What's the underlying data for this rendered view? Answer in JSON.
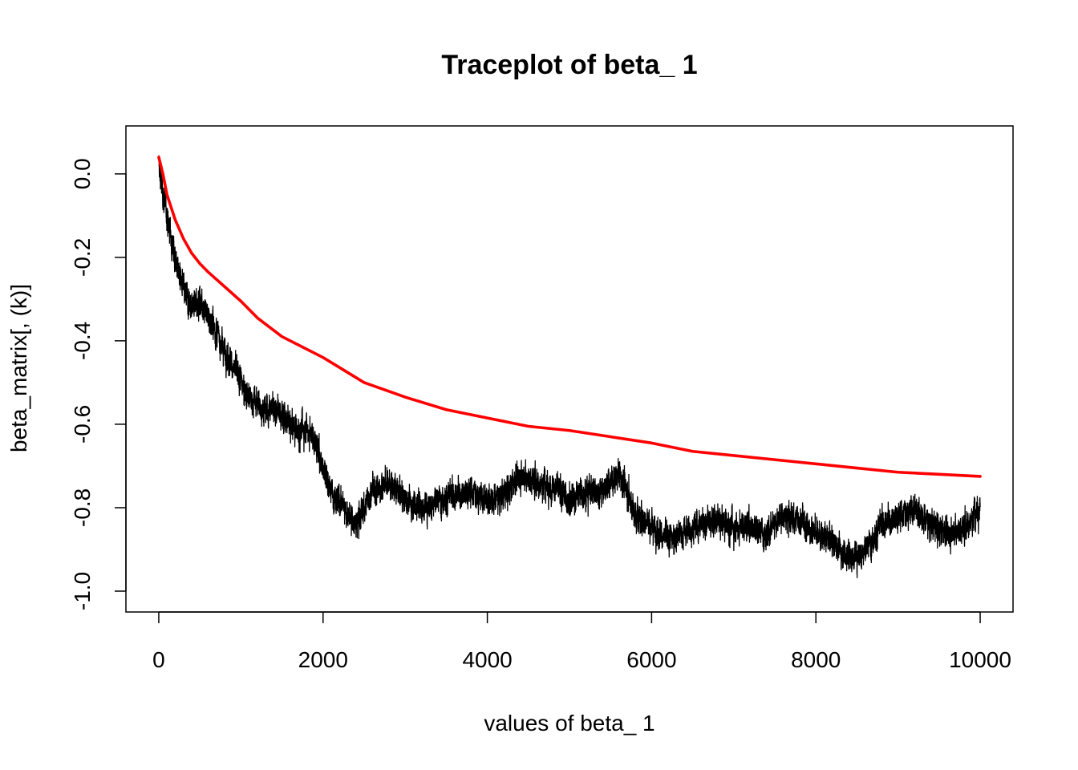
{
  "chart_data": {
    "type": "line",
    "title": "Traceplot of beta_ 1",
    "xlabel": "values of beta_ 1",
    "ylabel": "beta_matrix[, (k)]",
    "xlim": [
      -400,
      10400
    ],
    "ylim": [
      -1.05,
      0.115
    ],
    "x_ticks": [
      0,
      2000,
      4000,
      6000,
      8000,
      10000
    ],
    "x_tick_labels": [
      "0",
      "2000",
      "4000",
      "6000",
      "8000",
      "10000"
    ],
    "y_ticks": [
      0.0,
      -0.2,
      -0.4,
      -0.6,
      -0.8,
      -1.0
    ],
    "y_tick_labels": [
      "0.0",
      "-0.2",
      "-0.4",
      "-0.6",
      "-0.8",
      "-1.0"
    ],
    "grid": false,
    "legend": "none",
    "series": [
      {
        "color": "#000000",
        "style": "noisy trace",
        "x": [
          0,
          50,
          100,
          200,
          300,
          400,
          500,
          600,
          700,
          800,
          900,
          1000,
          1100,
          1200,
          1300,
          1400,
          1500,
          1600,
          1700,
          1800,
          1900,
          2000,
          2100,
          2200,
          2300,
          2400,
          2500,
          2600,
          2700,
          2800,
          2900,
          3000,
          3200,
          3400,
          3600,
          3800,
          4000,
          4200,
          4400,
          4600,
          4800,
          5000,
          5200,
          5400,
          5600,
          5700,
          5800,
          6000,
          6200,
          6400,
          6600,
          6800,
          7000,
          7200,
          7400,
          7600,
          7800,
          8000,
          8200,
          8400,
          8600,
          8800,
          9000,
          9200,
          9400,
          9600,
          9800,
          10000
        ],
        "y": [
          0.02,
          -0.05,
          -0.1,
          -0.2,
          -0.28,
          -0.32,
          -0.3,
          -0.34,
          -0.38,
          -0.42,
          -0.46,
          -0.5,
          -0.54,
          -0.55,
          -0.57,
          -0.56,
          -0.58,
          -0.6,
          -0.62,
          -0.61,
          -0.64,
          -0.7,
          -0.76,
          -0.78,
          -0.82,
          -0.84,
          -0.8,
          -0.76,
          -0.75,
          -0.74,
          -0.76,
          -0.78,
          -0.8,
          -0.78,
          -0.77,
          -0.76,
          -0.78,
          -0.77,
          -0.72,
          -0.74,
          -0.75,
          -0.78,
          -0.76,
          -0.76,
          -0.72,
          -0.76,
          -0.82,
          -0.84,
          -0.88,
          -0.86,
          -0.84,
          -0.83,
          -0.85,
          -0.84,
          -0.86,
          -0.82,
          -0.83,
          -0.86,
          -0.88,
          -0.92,
          -0.9,
          -0.84,
          -0.82,
          -0.8,
          -0.84,
          -0.86,
          -0.85,
          -0.8
        ],
        "noise_amplitude": 0.035,
        "points": 10000
      },
      {
        "color": "#ff0000",
        "style": "smooth running mean",
        "x": [
          0,
          50,
          100,
          200,
          300,
          400,
          500,
          600,
          800,
          1000,
          1200,
          1500,
          2000,
          2500,
          3000,
          3500,
          4000,
          4500,
          5000,
          5500,
          6000,
          6500,
          7000,
          7500,
          8000,
          8500,
          9000,
          9500,
          10000
        ],
        "y": [
          0.04,
          0.0,
          -0.05,
          -0.11,
          -0.155,
          -0.19,
          -0.215,
          -0.235,
          -0.27,
          -0.305,
          -0.345,
          -0.39,
          -0.44,
          -0.5,
          -0.535,
          -0.565,
          -0.585,
          -0.605,
          -0.615,
          -0.63,
          -0.645,
          -0.665,
          -0.675,
          -0.685,
          -0.695,
          -0.705,
          -0.715,
          -0.72,
          -0.725
        ]
      }
    ]
  }
}
